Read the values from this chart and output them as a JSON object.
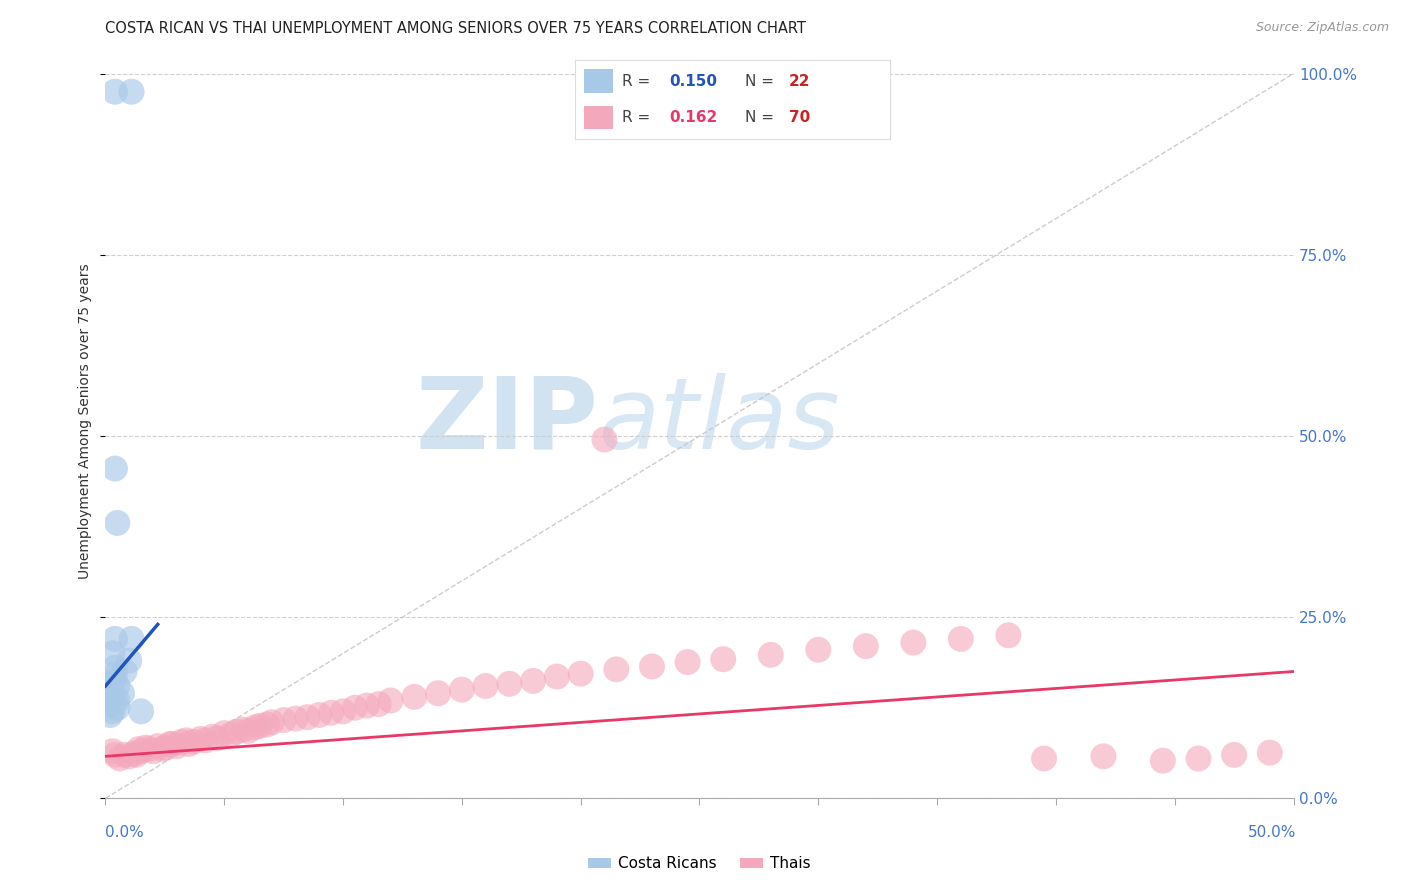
{
  "title": "COSTA RICAN VS THAI UNEMPLOYMENT AMONG SENIORS OVER 75 YEARS CORRELATION CHART",
  "source": "Source: ZipAtlas.com",
  "ylabel": "Unemployment Among Seniors over 75 years",
  "ytick_labels": [
    "0.0%",
    "25.0%",
    "50.0%",
    "75.0%",
    "100.0%"
  ],
  "ytick_values": [
    0.0,
    0.25,
    0.5,
    0.75,
    1.0
  ],
  "xlim": [
    0.0,
    0.5
  ],
  "ylim": [
    0.0,
    1.04
  ],
  "cr_R": 0.15,
  "cr_N": 22,
  "thai_R": 0.162,
  "thai_N": 70,
  "cr_color": "#a8c8e8",
  "thai_color": "#f4a8bc",
  "cr_line_color": "#2255bb",
  "thai_line_color": "#e83868",
  "diagonal_color": "#c4c4c4",
  "cr_points_x": [
    0.004,
    0.011,
    0.004,
    0.005,
    0.004,
    0.011,
    0.003,
    0.01,
    0.004,
    0.004,
    0.008,
    0.003,
    0.005,
    0.002,
    0.007,
    0.003,
    0.005,
    0.002,
    0.005,
    0.003,
    0.015,
    0.002
  ],
  "cr_points_y": [
    0.975,
    0.975,
    0.455,
    0.38,
    0.22,
    0.22,
    0.2,
    0.19,
    0.18,
    0.17,
    0.175,
    0.16,
    0.155,
    0.15,
    0.145,
    0.14,
    0.135,
    0.13,
    0.125,
    0.12,
    0.12,
    0.115
  ],
  "thai_points_x": [
    0.003,
    0.004,
    0.006,
    0.008,
    0.01,
    0.012,
    0.013,
    0.014,
    0.015,
    0.017,
    0.018,
    0.02,
    0.022,
    0.024,
    0.025,
    0.027,
    0.028,
    0.03,
    0.032,
    0.034,
    0.035,
    0.037,
    0.04,
    0.042,
    0.045,
    0.047,
    0.05,
    0.053,
    0.055,
    0.058,
    0.06,
    0.063,
    0.065,
    0.068,
    0.07,
    0.075,
    0.08,
    0.085,
    0.09,
    0.095,
    0.1,
    0.105,
    0.11,
    0.115,
    0.12,
    0.13,
    0.14,
    0.15,
    0.16,
    0.17,
    0.18,
    0.19,
    0.2,
    0.215,
    0.23,
    0.245,
    0.26,
    0.28,
    0.3,
    0.32,
    0.34,
    0.36,
    0.38,
    0.395,
    0.42,
    0.445,
    0.46,
    0.475,
    0.49,
    0.21
  ],
  "thai_points_y": [
    0.065,
    0.06,
    0.055,
    0.06,
    0.058,
    0.062,
    0.06,
    0.068,
    0.065,
    0.07,
    0.068,
    0.065,
    0.072,
    0.068,
    0.07,
    0.075,
    0.075,
    0.072,
    0.078,
    0.08,
    0.075,
    0.078,
    0.082,
    0.08,
    0.085,
    0.083,
    0.09,
    0.088,
    0.092,
    0.095,
    0.093,
    0.098,
    0.1,
    0.102,
    0.105,
    0.108,
    0.11,
    0.112,
    0.115,
    0.118,
    0.12,
    0.125,
    0.128,
    0.13,
    0.135,
    0.14,
    0.145,
    0.15,
    0.155,
    0.158,
    0.162,
    0.168,
    0.172,
    0.178,
    0.182,
    0.188,
    0.192,
    0.198,
    0.205,
    0.21,
    0.215,
    0.22,
    0.225,
    0.055,
    0.058,
    0.052,
    0.055,
    0.06,
    0.063,
    0.495
  ],
  "cr_line_x": [
    0.0,
    0.022
  ],
  "cr_line_y": [
    0.155,
    0.24
  ],
  "thai_line_x": [
    0.0,
    0.5
  ],
  "thai_line_y": [
    0.058,
    0.175
  ]
}
